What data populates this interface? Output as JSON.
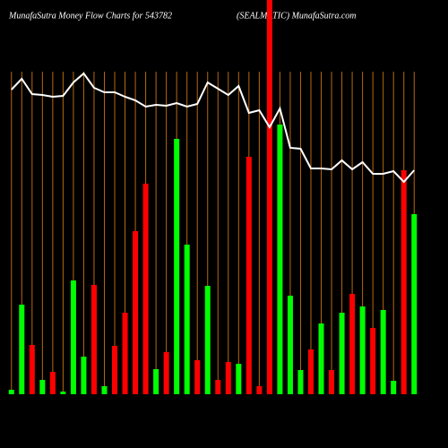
{
  "chart_data": {
    "type": "bar",
    "title": "MunafaSutra  Money Flow  Charts for 543782",
    "subtitle": "(SEALMATIC)  MunafaSutra.com",
    "ylim": [
      0,
      440
    ],
    "grid": true,
    "grid_color": "#b8680e",
    "categories": [
      null,
      null,
      null,
      null,
      null,
      null,
      null,
      null,
      null,
      null,
      null,
      null,
      null,
      null,
      null,
      null,
      null,
      null,
      null,
      null,
      null,
      null,
      null,
      null,
      null,
      null,
      null,
      null,
      null,
      null,
      null,
      null,
      null,
      null,
      null,
      null,
      null,
      null,
      null,
      null
    ],
    "values": [
      5,
      100,
      55,
      16,
      25,
      3,
      127,
      42,
      122,
      9,
      54,
      91,
      182,
      235,
      28,
      47,
      285,
      167,
      38,
      121,
      16,
      36,
      34,
      265,
      9,
      445,
      301,
      110,
      27,
      50,
      79,
      27,
      91,
      112,
      98,
      74,
      94,
      15,
      250,
      201
    ],
    "colors": [
      "#00ff00",
      "#00ff00",
      "#ff0000",
      "#00ff00",
      "#ff0000",
      "#00ff00",
      "#00ff00",
      "#00ff00",
      "#ff0000",
      "#00ff00",
      "#ff0000",
      "#ff0000",
      "#ff0000",
      "#ff0000",
      "#00ff00",
      "#ff0000",
      "#00ff00",
      "#00ff00",
      "#ff0000",
      "#00ff00",
      "#ff0000",
      "#ff0000",
      "#00ff00",
      "#ff0000",
      "#ff0000",
      "#ff0000",
      "#00ff00",
      "#00ff00",
      "#00ff00",
      "#ff0000",
      "#00ff00",
      "#ff0000",
      "#00ff00",
      "#ff0000",
      "#00ff00",
      "#ff0000",
      "#00ff00",
      "#00ff00",
      "#ff0000",
      "#00ff00"
    ],
    "line": {
      "color": "#ffffff",
      "values": [
        340,
        352,
        335,
        334,
        332,
        333,
        348,
        358,
        342,
        337,
        337,
        332,
        328,
        321,
        323,
        322,
        325,
        321,
        324,
        348,
        341,
        334,
        344,
        314,
        317,
        298,
        319,
        275,
        274,
        252,
        252,
        251,
        261,
        251,
        259,
        246,
        246,
        249,
        237,
        250
      ]
    }
  }
}
